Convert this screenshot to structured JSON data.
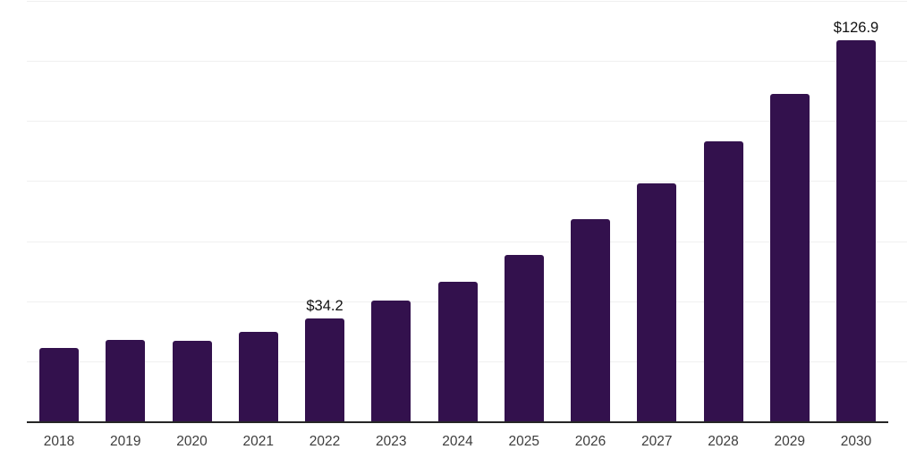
{
  "chart_data": {
    "type": "bar",
    "title": "",
    "xlabel": "",
    "ylabel": "",
    "categories": [
      "2018",
      "2019",
      "2020",
      "2021",
      "2022",
      "2023",
      "2024",
      "2025",
      "2026",
      "2027",
      "2028",
      "2029",
      "2030"
    ],
    "values": [
      24.4,
      27.1,
      26.8,
      29.8,
      34.2,
      40.2,
      46.5,
      55.4,
      67.3,
      79.2,
      93.2,
      109.0,
      126.9
    ],
    "data_labels": [
      {
        "category": "2022",
        "text": "$34.2"
      },
      {
        "category": "2030",
        "text": "$126.9"
      }
    ],
    "ylim": [
      0,
      140
    ],
    "gridline_step": 20,
    "grid": true,
    "legend": false,
    "y_tick_labels_visible": false,
    "colors": {
      "bar": "#33114D",
      "background": "#ffffff",
      "gridline": "#f0f0f0",
      "axis_line": "#262626",
      "tick_label": "#3d3d3d",
      "value_label": "#111111"
    }
  }
}
